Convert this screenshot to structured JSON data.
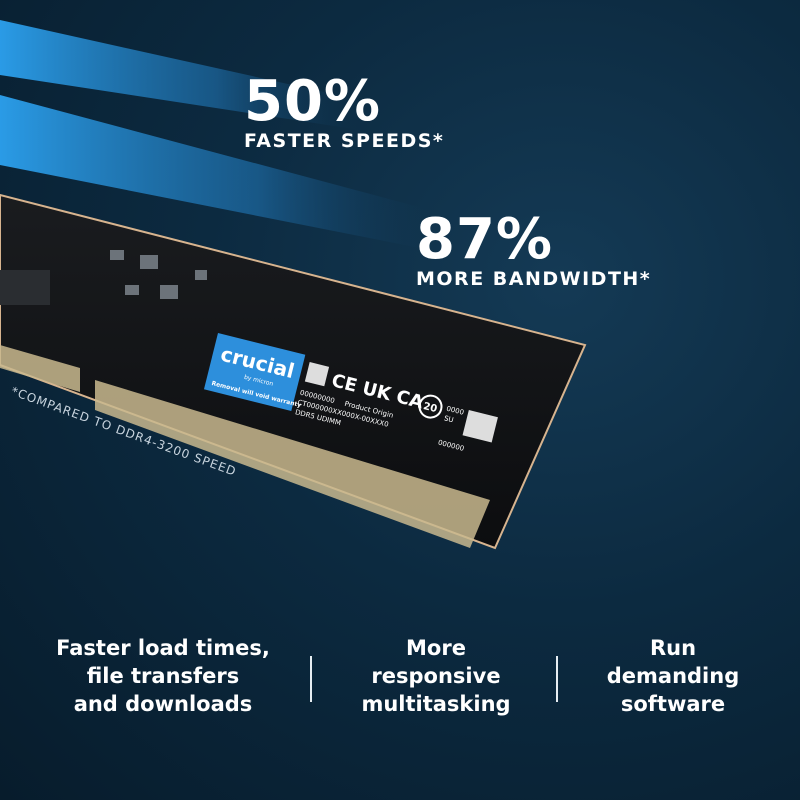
{
  "stats": [
    {
      "value": "50%",
      "label": "FASTER SPEEDS*"
    },
    {
      "value": "87%",
      "label": "MORE BANDWIDTH*"
    }
  ],
  "footnote": "*COMPARED TO DDR4-3200 SPEED",
  "module_label": {
    "brand": "crucial",
    "sub_brand": "by micron",
    "warranty": "Removal will void warranty",
    "line1": "00000000",
    "line2": "CT000000XX000X-00XXX0",
    "line3": "DDR5 UDIMM",
    "origin": "Product Origin",
    "marks": "CE UK CA",
    "recycle": "20",
    "code1": "0000",
    "code2": "SU",
    "code3": "000000"
  },
  "features": [
    {
      "lines": [
        "Faster load times,",
        "file transfers",
        "and downloads"
      ]
    },
    {
      "lines": [
        "More",
        "responsive",
        "multitasking"
      ]
    },
    {
      "lines": [
        "Run",
        "demanding",
        "software"
      ]
    }
  ],
  "colors": {
    "background": "#0c2a40",
    "streak": "#2a8fd6",
    "label_blue": "#2d8fdc",
    "pcb": "#121416",
    "contacts": "#c9b98e"
  }
}
